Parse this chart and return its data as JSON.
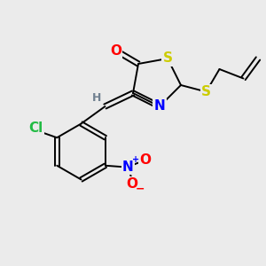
{
  "background_color": "#ebebeb",
  "bond_color": "#000000",
  "atom_colors": {
    "O": "#ff0000",
    "S": "#cccc00",
    "N": "#0000ff",
    "Cl": "#22bb44",
    "H": "#708090",
    "C": "#000000"
  },
  "lw": 1.4,
  "fs": 11,
  "fs_small": 9,
  "xlim": [
    0,
    10
  ],
  "ylim": [
    0,
    10
  ]
}
